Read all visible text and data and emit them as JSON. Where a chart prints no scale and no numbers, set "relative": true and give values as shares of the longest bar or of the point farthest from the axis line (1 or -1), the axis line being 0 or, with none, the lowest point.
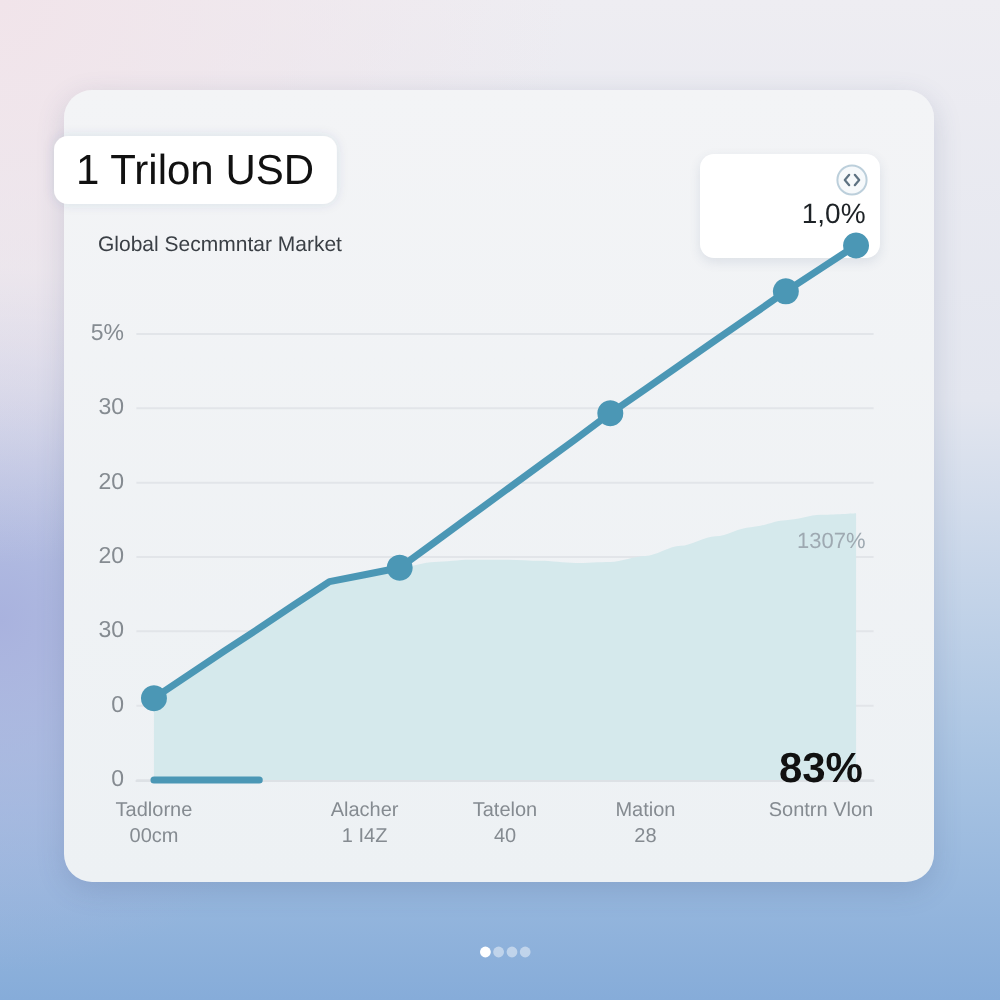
{
  "chart_data": {
    "type": "line",
    "title": "1 Trilon USD",
    "subtitle": "Global Secmmntar Market",
    "relative": true,
    "grid": "y",
    "categories": [
      "Tadlorne\n00cm",
      null,
      null,
      null,
      null,
      null,
      "Alacher\n1 I4Z",
      null,
      null,
      null,
      "Tatelon\n40",
      null,
      null,
      null,
      "Mation\n28",
      null,
      null,
      null,
      null,
      "Sontrn Vlon",
      null
    ],
    "annotations": [
      "5%",
      "30",
      "20",
      "20",
      "30",
      "0",
      "0",
      {
        "text": "1,0%",
        "y": 1
      },
      {
        "text": "1307%",
        "y": 0.499
      },
      {
        "text": "83%",
        "x": "Sontrn Vlon",
        "y": 0
      }
    ],
    "series": [
      {
        "type": "area",
        "color": "#d5e9ec",
        "values": [
          0.153,
          0.197,
          0.241,
          0.284,
          0.328,
          0.371,
          0.385,
          0.398,
          0.408,
          0.412,
          0.412,
          0.41,
          0.406,
          0.408,
          0.419,
          0.438,
          0.456,
          0.473,
          0.486,
          0.496,
          0.499
        ]
      },
      {
        "type": "line",
        "color": "#4b97b5",
        "marker": "none",
        "values": [
          0.153,
          0.197,
          0.241,
          0.284,
          0.328,
          0.371,
          0.384,
          0.397,
          0.445,
          0.493,
          0.541,
          0.589,
          0.637,
          0.686,
          0.731,
          0.777,
          0.823,
          0.868,
          0.914,
          0.957,
          1
        ]
      },
      {
        "type": "scatter",
        "color": "#4b97b5",
        "marker": "circle",
        "values": [
          0.153,
          null,
          null,
          null,
          null,
          null,
          null,
          0.397,
          null,
          null,
          null,
          null,
          null,
          0.686,
          null,
          null,
          null,
          null,
          0.914,
          null,
          1
        ]
      },
      {
        "type": "line",
        "color": "#4b97b5",
        "marker": "none",
        "values": [
          0,
          0,
          0,
          0,
          null,
          null,
          null,
          null,
          null,
          null,
          null,
          null,
          null,
          null,
          null,
          null,
          null,
          null,
          null,
          null,
          null
        ]
      }
    ]
  }
}
